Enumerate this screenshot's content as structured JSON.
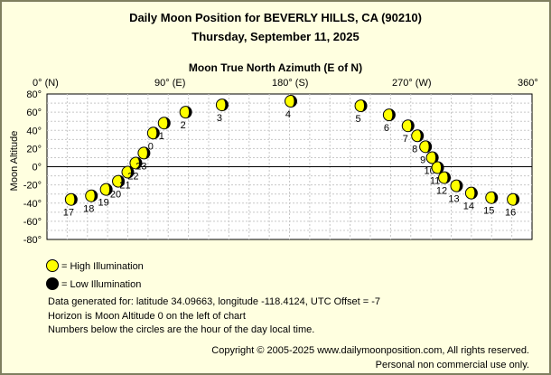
{
  "header": {
    "title": "Daily Moon Position for BEVERLY HILLS, CA (90210)",
    "date": "Thursday, September 11, 2025"
  },
  "chart_data": {
    "type": "scatter",
    "title": "Moon True North Azimuth (E of N)",
    "xlabel": "Moon True North Azimuth (E of N)",
    "ylabel": "Moon Altitude",
    "xlim": [
      0,
      360
    ],
    "ylim": [
      -80,
      80
    ],
    "x_ticks": [
      "0° (N)",
      "90° (E)",
      "180° (S)",
      "270° (W)",
      "360°"
    ],
    "y_ticks": [
      "80°",
      "60°",
      "40°",
      "20°",
      "0°",
      "-20°",
      "-40°",
      "-60°",
      "-80°"
    ],
    "grid": true,
    "horizon_line": 0,
    "points": [
      {
        "hour": "0",
        "az": 79,
        "alt": 37
      },
      {
        "hour": "1",
        "az": 87,
        "alt": 48
      },
      {
        "hour": "2",
        "az": 103,
        "alt": 60
      },
      {
        "hour": "3",
        "az": 130,
        "alt": 68
      },
      {
        "hour": "4",
        "az": 181,
        "alt": 72
      },
      {
        "hour": "5",
        "az": 233,
        "alt": 67
      },
      {
        "hour": "6",
        "az": 254,
        "alt": 57
      },
      {
        "hour": "7",
        "az": 268,
        "alt": 45
      },
      {
        "hour": "8",
        "az": 275,
        "alt": 34
      },
      {
        "hour": "9",
        "az": 281,
        "alt": 22
      },
      {
        "hour": "10",
        "az": 286,
        "alt": 10
      },
      {
        "hour": "11",
        "az": 290,
        "alt": -1
      },
      {
        "hour": "12",
        "az": 295,
        "alt": -12
      },
      {
        "hour": "13",
        "az": 304,
        "alt": -21
      },
      {
        "hour": "14",
        "az": 315,
        "alt": -29
      },
      {
        "hour": "15",
        "az": 330,
        "alt": -34
      },
      {
        "hour": "16",
        "az": 346,
        "alt": -36
      },
      {
        "hour": "17",
        "az": 18,
        "alt": -36
      },
      {
        "hour": "18",
        "az": 33,
        "alt": -32
      },
      {
        "hour": "19",
        "az": 44,
        "alt": -25
      },
      {
        "hour": "20",
        "az": 53,
        "alt": -16
      },
      {
        "hour": "21",
        "az": 60,
        "alt": -6
      },
      {
        "hour": "22",
        "az": 66,
        "alt": 4
      },
      {
        "hour": "23",
        "az": 72,
        "alt": 15
      }
    ],
    "illumination": "high",
    "colors": {
      "high": "#ffff00",
      "low": "#000000",
      "horizon": "#000000",
      "grid": "#c8c8c8"
    }
  },
  "legend": {
    "high_label": "= High Illumination",
    "low_label": "= Low Illumination"
  },
  "notes": {
    "line1": "Data generated for: latitude 34.09663, longitude -118.4124, UTC Offset = -7",
    "line2": "Horizon is Moon Altitude 0 on the left of chart",
    "line3": "Numbers below the circles are the hour of the day local time."
  },
  "footer": {
    "copyright": "Copyright © 2005-2025 www.dailymoonposition.com, All rights reserved.",
    "license": "Personal non commercial use only."
  }
}
